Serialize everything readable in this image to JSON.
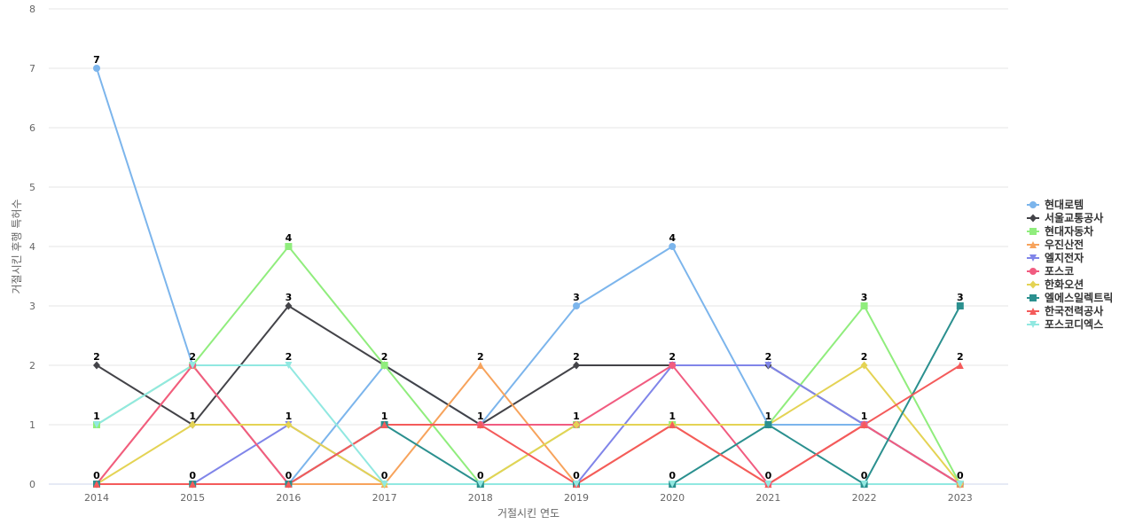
{
  "chart_data": {
    "type": "line",
    "title": "",
    "xlabel": "거절시킨 연도",
    "ylabel": "거절시킨 후행 특허수",
    "x": [
      "2014",
      "2015",
      "2016",
      "2017",
      "2018",
      "2019",
      "2020",
      "2021",
      "2022",
      "2023"
    ],
    "ylim": [
      0,
      8
    ],
    "yticks": [
      0,
      1,
      2,
      3,
      4,
      5,
      6,
      7,
      8
    ],
    "grid": true,
    "legend_position": "right",
    "series": [
      {
        "name": "현대로템",
        "color": "#7cb5ec",
        "marker": "circle",
        "values": [
          7,
          2,
          0,
          2,
          1,
          3,
          4,
          1,
          1,
          0
        ]
      },
      {
        "name": "서울교통공사",
        "color": "#434348",
        "marker": "diamond",
        "values": [
          2,
          1,
          3,
          2,
          1,
          2,
          2,
          2,
          1,
          0
        ]
      },
      {
        "name": "현대자동차",
        "color": "#90ed7d",
        "marker": "square",
        "values": [
          1,
          2,
          4,
          2,
          0,
          1,
          1,
          1,
          3,
          0
        ]
      },
      {
        "name": "우진산전",
        "color": "#f7a35c",
        "marker": "triangle",
        "values": [
          0,
          2,
          0,
          0,
          2,
          0,
          1,
          0,
          1,
          0
        ]
      },
      {
        "name": "엘지전자",
        "color": "#8085e9",
        "marker": "triangle-down",
        "values": [
          0,
          0,
          1,
          0,
          0,
          0,
          2,
          2,
          1,
          0
        ]
      },
      {
        "name": "포스코",
        "color": "#f15c80",
        "marker": "circle",
        "values": [
          0,
          2,
          0,
          1,
          1,
          1,
          2,
          0,
          1,
          0
        ]
      },
      {
        "name": "한화오션",
        "color": "#e4d354",
        "marker": "diamond",
        "values": [
          0,
          1,
          1,
          0,
          0,
          1,
          1,
          1,
          2,
          0
        ]
      },
      {
        "name": "엘에스일렉트릭",
        "color": "#2b908f",
        "marker": "square",
        "values": [
          0,
          0,
          0,
          1,
          0,
          0,
          0,
          1,
          0,
          3
        ]
      },
      {
        "name": "한국전력공사",
        "color": "#f45b5b",
        "marker": "triangle",
        "values": [
          0,
          0,
          0,
          1,
          1,
          0,
          1,
          0,
          1,
          2
        ]
      },
      {
        "name": "포스코디엑스",
        "color": "#91e8e1",
        "marker": "triangle-down",
        "values": [
          1,
          2,
          2,
          0,
          0,
          0,
          0,
          0,
          0,
          0
        ]
      }
    ],
    "data_labels": [
      {
        "x": "2014",
        "y": 7,
        "text": "7"
      },
      {
        "x": "2014",
        "y": 2,
        "text": "2"
      },
      {
        "x": "2014",
        "y": 1,
        "text": "1"
      },
      {
        "x": "2014",
        "y": 0,
        "text": "0"
      },
      {
        "x": "2015",
        "y": 2,
        "text": "2"
      },
      {
        "x": "2015",
        "y": 1,
        "text": "1"
      },
      {
        "x": "2015",
        "y": 0,
        "text": "0"
      },
      {
        "x": "2016",
        "y": 4,
        "text": "4"
      },
      {
        "x": "2016",
        "y": 3,
        "text": "3"
      },
      {
        "x": "2016",
        "y": 2,
        "text": "2"
      },
      {
        "x": "2016",
        "y": 1,
        "text": "1"
      },
      {
        "x": "2016",
        "y": 0,
        "text": "0"
      },
      {
        "x": "2017",
        "y": 2,
        "text": "2"
      },
      {
        "x": "2017",
        "y": 1,
        "text": "1"
      },
      {
        "x": "2017",
        "y": 0,
        "text": "0"
      },
      {
        "x": "2018",
        "y": 2,
        "text": "2"
      },
      {
        "x": "2018",
        "y": 1,
        "text": "1"
      },
      {
        "x": "2018",
        "y": 0,
        "text": "0"
      },
      {
        "x": "2019",
        "y": 3,
        "text": "3"
      },
      {
        "x": "2019",
        "y": 2,
        "text": "2"
      },
      {
        "x": "2019",
        "y": 1,
        "text": "1"
      },
      {
        "x": "2019",
        "y": 0,
        "text": "0"
      },
      {
        "x": "2020",
        "y": 4,
        "text": "4"
      },
      {
        "x": "2020",
        "y": 2,
        "text": "2"
      },
      {
        "x": "2020",
        "y": 1,
        "text": "1"
      },
      {
        "x": "2020",
        "y": 0,
        "text": "0"
      },
      {
        "x": "2021",
        "y": 2,
        "text": "2"
      },
      {
        "x": "2021",
        "y": 1,
        "text": "1"
      },
      {
        "x": "2021",
        "y": 0,
        "text": "0"
      },
      {
        "x": "2022",
        "y": 3,
        "text": "3"
      },
      {
        "x": "2022",
        "y": 2,
        "text": "2"
      },
      {
        "x": "2022",
        "y": 1,
        "text": "1"
      },
      {
        "x": "2022",
        "y": 0,
        "text": "0"
      },
      {
        "x": "2023",
        "y": 3,
        "text": "3"
      },
      {
        "x": "2023",
        "y": 2,
        "text": "2"
      },
      {
        "x": "2023",
        "y": 0,
        "text": "0"
      }
    ]
  }
}
